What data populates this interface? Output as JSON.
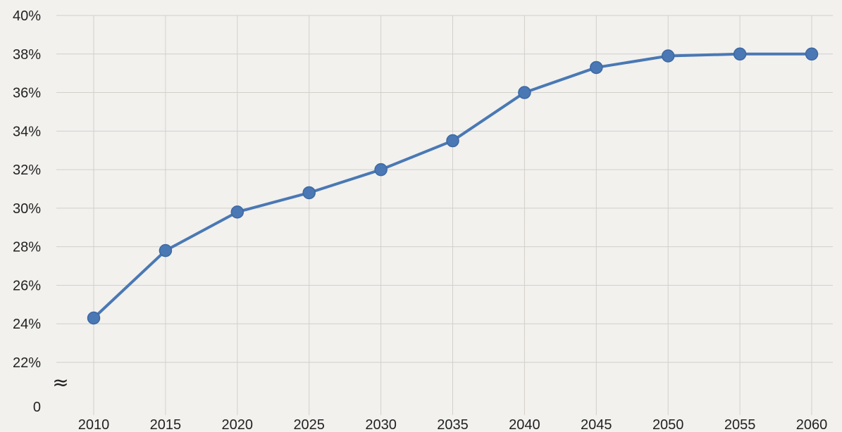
{
  "chart_data": {
    "type": "line",
    "title": "",
    "xlabel": "",
    "ylabel": "",
    "x": [
      2010,
      2015,
      2020,
      2025,
      2030,
      2035,
      2040,
      2045,
      2050,
      2055,
      2060
    ],
    "series": [
      {
        "values": [
          24.3,
          27.8,
          29.8,
          30.8,
          32.0,
          33.5,
          36.0,
          37.3,
          37.9,
          38.0,
          38.0
        ]
      }
    ],
    "x_tick_labels": [
      "2010",
      "2015",
      "2020",
      "2025",
      "2030",
      "2035",
      "2040",
      "2045",
      "2050",
      "2055",
      "2060"
    ],
    "y_ticks": [
      22,
      24,
      26,
      28,
      30,
      32,
      34,
      36,
      38,
      40
    ],
    "y_tick_labels": [
      "22%",
      "24%",
      "26%",
      "28%",
      "30%",
      "32%",
      "34%",
      "36%",
      "38%",
      "40%"
    ],
    "y_zero_label": "0",
    "axis_break_symbol": "≈",
    "ylim": [
      22,
      40
    ],
    "grid": true,
    "line_color": "#4a78b4",
    "marker_color": "#4a78b4",
    "grid_color": "#d2d0cb"
  }
}
